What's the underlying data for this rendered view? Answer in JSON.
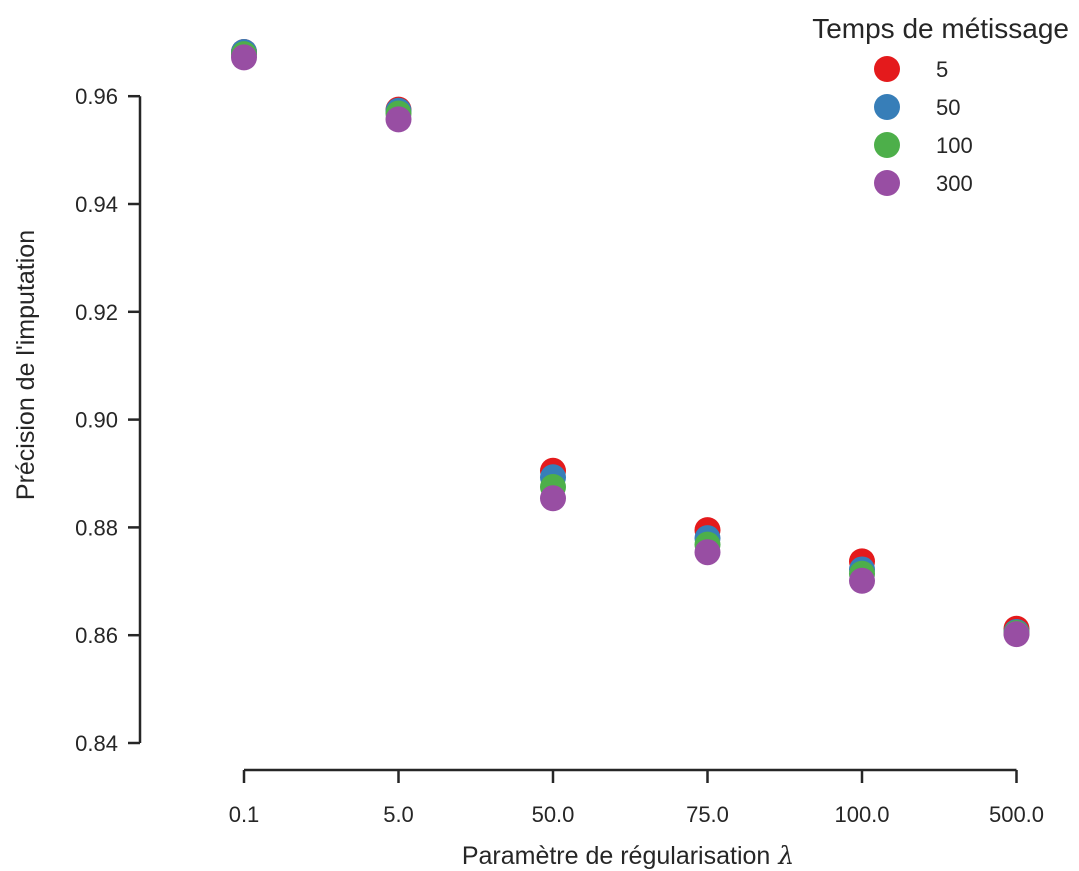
{
  "chart_data": {
    "type": "scatter",
    "title": "",
    "xlabel": "Paramètre de régularisation",
    "xlabel_symbol": "λ",
    "ylabel": "Précision de l'imputation",
    "categories": [
      "0.1",
      "5.0",
      "50.0",
      "75.0",
      "100.0",
      "500.0"
    ],
    "ylim": [
      0.84,
      0.97
    ],
    "yticks": [
      "0.84",
      "0.86",
      "0.88",
      "0.90",
      "0.92",
      "0.94",
      "0.96"
    ],
    "yticks_values": [
      0.84,
      0.86,
      0.88,
      0.9,
      0.92,
      0.94,
      0.96
    ],
    "grid": false,
    "legend": {
      "title": "Temps de métissage",
      "placement": "top-right"
    },
    "series": [
      {
        "name": "5",
        "color": "#e41a1c",
        "values": [
          0.9682,
          0.9575,
          0.8905,
          0.8795,
          0.8737,
          0.8612
        ]
      },
      {
        "name": "50",
        "color": "#377eb8",
        "values": [
          0.9682,
          0.9573,
          0.8893,
          0.878,
          0.8722,
          0.8606
        ]
      },
      {
        "name": "100",
        "color": "#4daf4a",
        "values": [
          0.9678,
          0.9568,
          0.8875,
          0.8768,
          0.8714,
          0.8604
        ]
      },
      {
        "name": "300",
        "color": "#984ea3",
        "values": [
          0.9672,
          0.9557,
          0.8854,
          0.8754,
          0.8701,
          0.8602
        ]
      }
    ]
  }
}
